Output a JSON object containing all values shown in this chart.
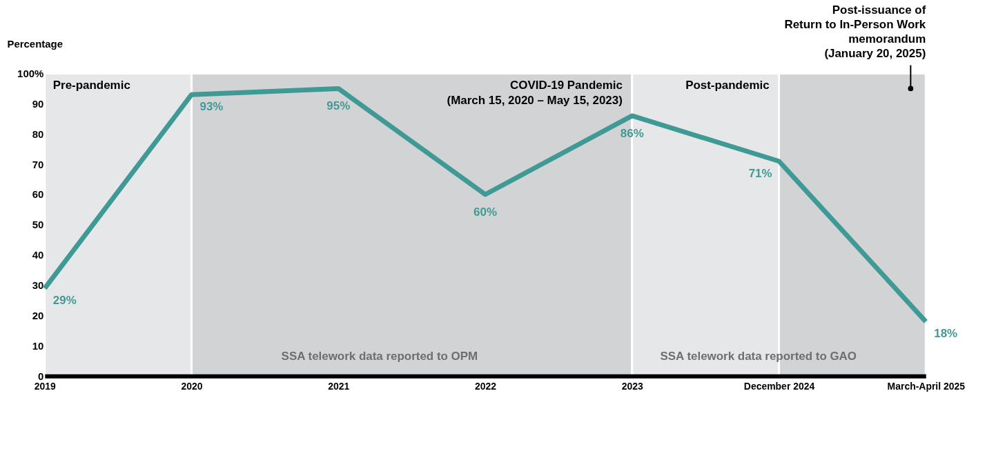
{
  "chart_data": {
    "type": "line",
    "ylabel": "Percentage",
    "categories": [
      "2019",
      "2020",
      "2021",
      "2022",
      "2023",
      "December 2024",
      "March-April 2025"
    ],
    "series": [
      {
        "color": "#3f9a95",
        "values": [
          29,
          93,
          95,
          60,
          86,
          71,
          18
        ],
        "value_labels": [
          "29%",
          "93%",
          "95%",
          "60%",
          "86%",
          "71%",
          "18%"
        ]
      }
    ],
    "ylim": [
      0,
      100
    ],
    "yticks": [
      0,
      10,
      20,
      30,
      40,
      50,
      60,
      70,
      80,
      90,
      {
        "value": 100,
        "label": "100%"
      }
    ],
    "grid": false,
    "marker": "none",
    "line_style": "solid",
    "bands": [
      {
        "axis": "x",
        "from": "2019",
        "to": "2020",
        "label": "Pre-pandemic",
        "color": "#e6e7e8"
      },
      {
        "axis": "x",
        "from": "2020",
        "to": "2023",
        "label": "COVID-19 Pandemic\n(March 15, 2020 – May 15, 2023)",
        "color": "#d1d3d4"
      },
      {
        "axis": "x",
        "from": "2023",
        "to": "December 2024",
        "label": "Post-pandemic",
        "color": "#e6e7e8"
      },
      {
        "axis": "x",
        "from": "December 2024",
        "to": "March-April 2025",
        "label": "Post-issuance of\nReturn to In-Person Work\nmemorandum\n(January 20, 2025)",
        "color": "#d1d3d4"
      }
    ],
    "annotations": [
      "SSA telework data reported to OPM",
      "SSA telework data reported to GAO"
    ]
  }
}
